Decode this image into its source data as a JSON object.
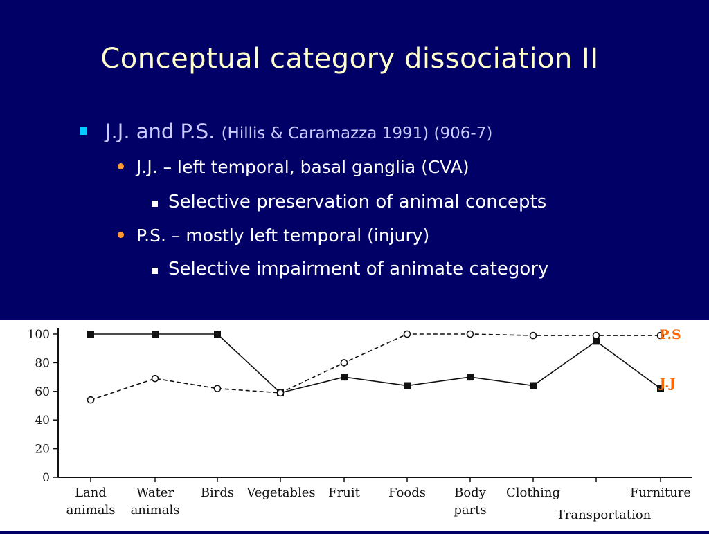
{
  "title": "Conceptual category dissociation II",
  "bullets": {
    "l1_main": "J.J. and P.S.",
    "l1_cite": "(Hillis & Caramazza 1991) (906-7)",
    "l2a": "J.J. – left temporal, basal ganglia (CVA)",
    "l3a": "Selective preservation of animal concepts",
    "l2b": "P.S. – mostly left temporal (injury)",
    "l3b": "Selective impairment of animate category"
  },
  "colors": {
    "background": "#000066",
    "title": "#ffffcc",
    "bullet_blue": "#00ccff",
    "bullet_orange": "#ff9933",
    "label_orange": "#ff6600"
  },
  "chart_data": {
    "type": "line",
    "categories": [
      "Land animals",
      "Water animals",
      "Birds",
      "Vegetables",
      "Fruit",
      "Foods",
      "Body parts",
      "Clothing",
      "Transportation",
      "Furniture"
    ],
    "ylim": [
      0,
      100
    ],
    "yticks": [
      "0",
      "20",
      "40",
      "60",
      "80",
      "100"
    ],
    "series": [
      {
        "name": "J.J",
        "marker": "square-filled",
        "line": "solid",
        "values": [
          100,
          100,
          100,
          59,
          70,
          64,
          70,
          64,
          95,
          62
        ]
      },
      {
        "name": "P.S",
        "marker": "circle-open",
        "line": "dashed",
        "values": [
          54,
          69,
          62,
          59,
          80,
          100,
          100,
          99,
          99,
          99
        ]
      }
    ],
    "legend": {
      "ps": "P.S",
      "jj": "J.J"
    }
  }
}
